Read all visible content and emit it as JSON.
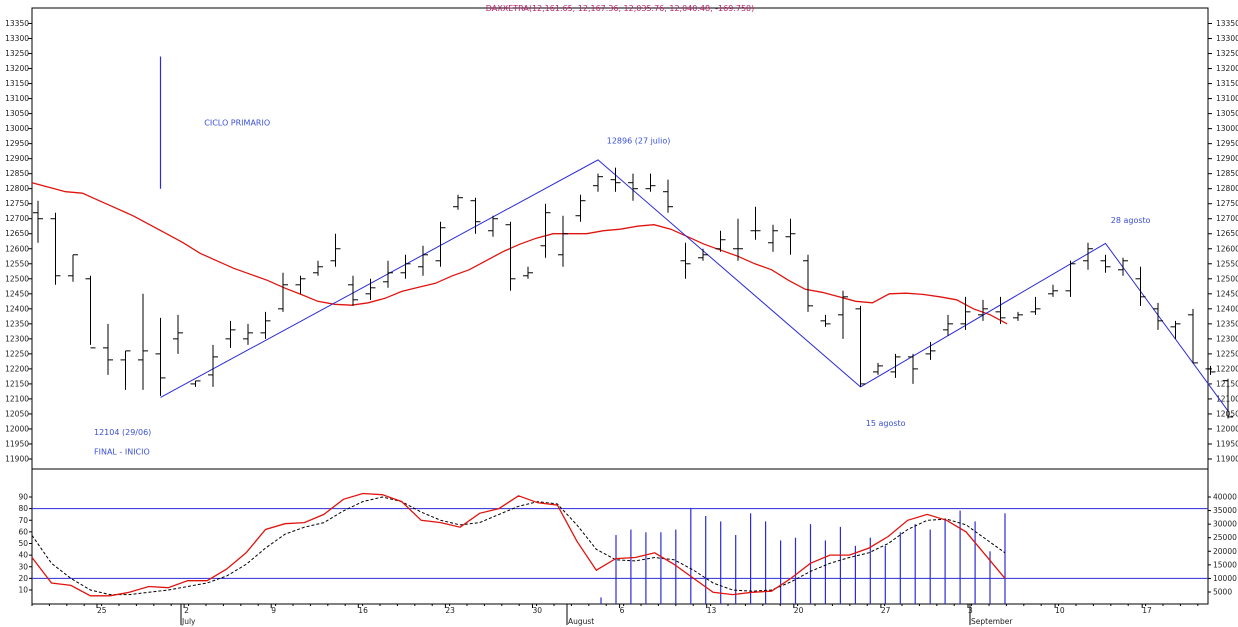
{
  "chart_data": {
    "type": "line",
    "title": "DAXXETRA(12,161.65, 12,167.36, 12,035.76, 12,040.48, -169.750)",
    "price": {
      "ylim": [
        11850,
        13400
      ],
      "yticks": [
        11900,
        11950,
        12000,
        12050,
        12100,
        12150,
        12200,
        12250,
        12300,
        12350,
        12400,
        12450,
        12500,
        12550,
        12600,
        12650,
        12700,
        12750,
        12800,
        12850,
        12900,
        12950,
        13000,
        13050,
        13100,
        13150,
        13200,
        13250,
        13300,
        13350
      ],
      "bars": [
        {
          "h": 12760,
          "l": 12620,
          "o": 12720,
          "c": 12700
        },
        {
          "h": 12720,
          "l": 12480,
          "o": 12700,
          "c": 12510
        },
        {
          "h": 12580,
          "l": 12490,
          "o": 12510,
          "c": 12580
        },
        {
          "h": 12510,
          "l": 12280,
          "o": 12500,
          "c": 12270
        },
        {
          "h": 12350,
          "l": 12180,
          "o": 12270,
          "c": 12230
        },
        {
          "h": 12260,
          "l": 12130,
          "o": 12230,
          "c": 12260
        },
        {
          "h": 12450,
          "l": 12130,
          "o": 12230,
          "c": 12260
        },
        {
          "h": 12370,
          "l": 12110,
          "o": 12250,
          "c": 12170
        },
        {
          "h": 12380,
          "l": 12250,
          "o": 12300,
          "c": 12320
        },
        {
          "h": 12160,
          "l": 12140,
          "o": 12150,
          "c": 12160
        },
        {
          "h": 12280,
          "l": 12140,
          "o": 12180,
          "c": 12240
        },
        {
          "h": 12360,
          "l": 12270,
          "o": 12300,
          "c": 12330
        },
        {
          "h": 12350,
          "l": 12280,
          "o": 12300,
          "c": 12320
        },
        {
          "h": 12390,
          "l": 12300,
          "o": 12320,
          "c": 12360
        },
        {
          "h": 12520,
          "l": 12390,
          "o": 12400,
          "c": 12480
        },
        {
          "h": 12510,
          "l": 12450,
          "o": 12480,
          "c": 12500
        },
        {
          "h": 12560,
          "l": 12510,
          "o": 12520,
          "c": 12540
        },
        {
          "h": 12650,
          "l": 12540,
          "o": 12560,
          "c": 12600
        },
        {
          "h": 12510,
          "l": 12410,
          "o": 12480,
          "c": 12430
        },
        {
          "h": 12500,
          "l": 12430,
          "o": 12450,
          "c": 12470
        },
        {
          "h": 12560,
          "l": 12470,
          "o": 12490,
          "c": 12520
        },
        {
          "h": 12580,
          "l": 12500,
          "o": 12520,
          "c": 12550
        },
        {
          "h": 12610,
          "l": 12510,
          "o": 12540,
          "c": 12580
        },
        {
          "h": 12690,
          "l": 12540,
          "o": 12560,
          "c": 12670
        },
        {
          "h": 12780,
          "l": 12730,
          "o": 12740,
          "c": 12770
        },
        {
          "h": 12770,
          "l": 12650,
          "o": 12760,
          "c": 12690
        },
        {
          "h": 12710,
          "l": 12640,
          "o": 12660,
          "c": 12700
        },
        {
          "h": 12690,
          "l": 12460,
          "o": 12680,
          "c": 12500
        },
        {
          "h": 12540,
          "l": 12500,
          "o": 12510,
          "c": 12520
        },
        {
          "h": 12750,
          "l": 12570,
          "o": 12610,
          "c": 12720
        },
        {
          "h": 12710,
          "l": 12540,
          "o": 12580,
          "c": 12650
        },
        {
          "h": 12780,
          "l": 12690,
          "o": 12710,
          "c": 12760
        },
        {
          "h": 12850,
          "l": 12790,
          "o": 12810,
          "c": 12840
        },
        {
          "h": 12870,
          "l": 12790,
          "o": 12830,
          "c": 12820
        },
        {
          "h": 12850,
          "l": 12760,
          "o": 12820,
          "c": 12800
        },
        {
          "h": 12850,
          "l": 12790,
          "o": 12800,
          "c": 12810
        },
        {
          "h": 12830,
          "l": 12720,
          "o": 12790,
          "c": 12740
        },
        {
          "h": 12620,
          "l": 12500,
          "o": 12560,
          "c": 12550
        },
        {
          "h": 12600,
          "l": 12560,
          "o": 12570,
          "c": 12580
        },
        {
          "h": 12660,
          "l": 12590,
          "o": 12600,
          "c": 12630
        },
        {
          "h": 12700,
          "l": 12560,
          "o": 12600,
          "c": 12600
        },
        {
          "h": 12740,
          "l": 12630,
          "o": 12660,
          "c": 12660
        },
        {
          "h": 12680,
          "l": 12590,
          "o": 12620,
          "c": 12660
        },
        {
          "h": 12700,
          "l": 12580,
          "o": 12640,
          "c": 12650
        },
        {
          "h": 12580,
          "l": 12390,
          "o": 12560,
          "c": 12410
        },
        {
          "h": 12380,
          "l": 12340,
          "o": 12360,
          "c": 12350
        },
        {
          "h": 12460,
          "l": 12300,
          "o": 12380,
          "c": 12440
        },
        {
          "h": 12410,
          "l": 12140,
          "o": 12400,
          "c": 12150
        },
        {
          "h": 12220,
          "l": 12180,
          "o": 12190,
          "c": 12210
        },
        {
          "h": 12250,
          "l": 12170,
          "o": 12190,
          "c": 12240
        },
        {
          "h": 12250,
          "l": 12150,
          "o": 12240,
          "c": 12200
        },
        {
          "h": 12290,
          "l": 12230,
          "o": 12250,
          "c": 12260
        },
        {
          "h": 12380,
          "l": 12310,
          "o": 12330,
          "c": 12350
        },
        {
          "h": 12440,
          "l": 12330,
          "o": 12350,
          "c": 12390
        },
        {
          "h": 12430,
          "l": 12360,
          "o": 12380,
          "c": 12400
        },
        {
          "h": 12440,
          "l": 12350,
          "o": 12390,
          "c": 12370
        },
        {
          "h": 12390,
          "l": 12360,
          "o": 12370,
          "c": 12380
        },
        {
          "h": 12440,
          "l": 12380,
          "o": 12390,
          "c": 12400
        },
        {
          "h": 12480,
          "l": 12440,
          "o": 12450,
          "c": 12460
        },
        {
          "h": 12560,
          "l": 12440,
          "o": 12460,
          "c": 12550
        },
        {
          "h": 12620,
          "l": 12530,
          "o": 12560,
          "c": 12600
        },
        {
          "h": 12580,
          "l": 12520,
          "o": 12560,
          "c": 12540
        },
        {
          "h": 12570,
          "l": 12510,
          "o": 12530,
          "c": 12560
        },
        {
          "h": 12540,
          "l": 12410,
          "o": 12500,
          "c": 12440
        },
        {
          "h": 12420,
          "l": 12330,
          "o": 12400,
          "c": 12360
        },
        {
          "h": 12360,
          "l": 12300,
          "o": 12340,
          "c": 12350
        },
        {
          "h": 12400,
          "l": 12220,
          "o": 12380,
          "c": 12220
        },
        {
          "h": 12210,
          "l": 12180,
          "o": 12200,
          "c": 12190
        },
        {
          "h": 12167,
          "l": 12035,
          "o": 12161,
          "c": 12040
        }
      ],
      "ma": [
        12820,
        12805,
        12790,
        12785,
        12760,
        12735,
        12710,
        12680,
        12650,
        12620,
        12585,
        12560,
        12535,
        12515,
        12495,
        12470,
        12448,
        12425,
        12415,
        12412,
        12420,
        12435,
        12458,
        12472,
        12485,
        12510,
        12530,
        12560,
        12590,
        12615,
        12635,
        12650,
        12650,
        12650,
        12660,
        12665,
        12675,
        12680,
        12665,
        12640,
        12615,
        12595,
        12575,
        12550,
        12530,
        12495,
        12465,
        12455,
        12440,
        12425,
        12420,
        12450,
        12452,
        12448,
        12440,
        12430,
        12400,
        12380,
        12350
      ],
      "ma_step": 0.833,
      "zigzag": [
        [
          7,
          12105
        ],
        [
          32,
          12896
        ],
        [
          47,
          12140
        ],
        [
          61,
          12618
        ],
        [
          68,
          12060
        ]
      ],
      "annotations": [
        {
          "text": "CICLO PRIMARIO",
          "idx": 9.5,
          "y": 13010
        },
        {
          "text": "12896 (27 julio)",
          "idx": 32.5,
          "y": 12950
        },
        {
          "text": "28 agosto",
          "idx": 61.3,
          "y": 12685
        },
        {
          "text": "15 agosto",
          "idx": 47.3,
          "y": 12010
        },
        {
          "text": "12104 (29/06)",
          "idx": 3.2,
          "y": 11980
        },
        {
          "text": "FINAL - INICIO",
          "idx": 3.2,
          "y": 11915
        }
      ],
      "vline": {
        "idx": 7,
        "from": 12800,
        "to": 13240
      }
    },
    "stochastic": {
      "ylim": [
        0,
        100
      ],
      "yticks": [
        10,
        20,
        30,
        40,
        50,
        60,
        70,
        80,
        90
      ],
      "levels": [
        20,
        80
      ],
      "k": [
        38,
        16,
        14,
        5,
        5,
        8,
        13,
        12,
        18,
        18,
        28,
        42,
        62,
        67,
        68,
        75,
        88,
        93,
        92,
        86,
        70,
        68,
        64,
        76,
        80,
        91,
        85,
        83,
        52,
        27,
        37,
        38,
        42,
        32,
        20,
        8,
        6,
        8,
        9,
        20,
        33,
        40,
        40,
        46,
        56,
        70,
        75,
        70,
        60,
        40,
        20
      ],
      "d": [
        57,
        33,
        20,
        10,
        6,
        6,
        8,
        10,
        13,
        16,
        22,
        32,
        46,
        58,
        64,
        68,
        78,
        86,
        90,
        86,
        77,
        70,
        66,
        68,
        75,
        82,
        86,
        84,
        66,
        45,
        36,
        35,
        38,
        36,
        27,
        16,
        10,
        9,
        10,
        17,
        26,
        33,
        38,
        42,
        50,
        62,
        70,
        71,
        66,
        54,
        42
      ],
      "step": 1.31
    },
    "volume": {
      "ylim": [
        0,
        5000
      ],
      "yticks": [
        5000,
        10000,
        15000,
        20000,
        25000,
        30000,
        35000,
        40000
      ],
      "bars": [
        3000,
        26000,
        28000,
        27000,
        27000,
        28000,
        36000,
        33000,
        31000,
        26000,
        34000,
        31000,
        24000,
        25000,
        30000,
        24000,
        29000,
        22000,
        25000,
        22000,
        27000,
        30000,
        28000,
        32000,
        35000,
        31000,
        20000,
        34000
      ]
    },
    "xticks": [
      {
        "label": "25",
        "idx": 3.5
      },
      {
        "label": "2",
        "idx": 8.5
      },
      {
        "label": "9",
        "idx": 13.5
      },
      {
        "label": "16",
        "idx": 18.5
      },
      {
        "label": "23",
        "idx": 23.5
      },
      {
        "label": "30",
        "idx": 28.5
      },
      {
        "label": "6",
        "idx": 33.5
      },
      {
        "label": "13",
        "idx": 38.5
      },
      {
        "label": "20",
        "idx": 43.5
      },
      {
        "label": "27",
        "idx": 48.5
      },
      {
        "label": "3",
        "idx": 53.5
      },
      {
        "label": "10",
        "idx": 58.5
      },
      {
        "label": "17",
        "idx": 63.5
      }
    ],
    "months": [
      {
        "label": "July",
        "idx": 8.5
      },
      {
        "label": "August",
        "idx": 30.5
      },
      {
        "label": "September",
        "idx": 53.3
      }
    ]
  }
}
